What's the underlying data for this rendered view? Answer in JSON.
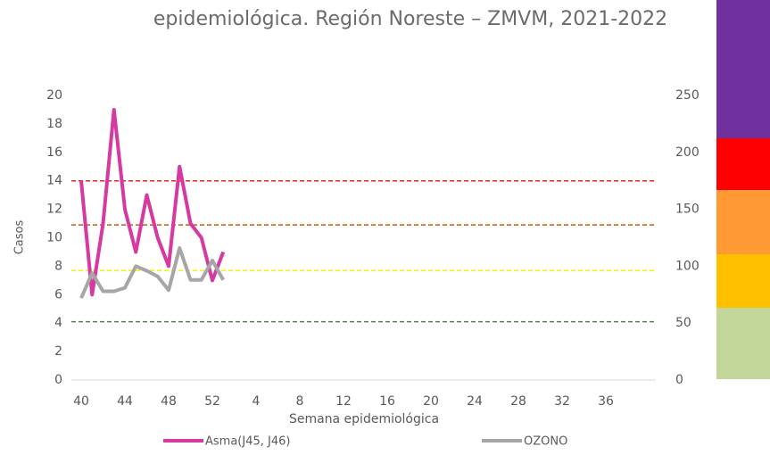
{
  "chart_data": {
    "type": "line",
    "title": "epidemiológica. Región Noreste – ZMVM, 2021-2022",
    "x_label": "Semana epidemiológica",
    "y_label": "Casos",
    "categories": [
      "40",
      null,
      null,
      null,
      "44",
      null,
      null,
      null,
      "48",
      null,
      null,
      null,
      "52",
      null,
      null,
      null,
      "4",
      null,
      null,
      null,
      "8",
      null,
      null,
      null,
      "12",
      null,
      null,
      null,
      "16",
      null,
      null,
      null,
      "20",
      null,
      null,
      null,
      "24",
      null,
      null,
      null,
      "28",
      null,
      null,
      null,
      "32",
      null,
      null,
      null,
      "36",
      null,
      null,
      null
    ],
    "series": [
      {
        "name": "Asma(J45, J46)",
        "color": "#d63aa0",
        "values": [
          14,
          6,
          11,
          19,
          12,
          9,
          13,
          10,
          8,
          15,
          11,
          10,
          7,
          9,
          null,
          null,
          null,
          null,
          null,
          null,
          null,
          null,
          null,
          null,
          null,
          null,
          null,
          null,
          null,
          null,
          null,
          null,
          null,
          null,
          null,
          null,
          null,
          null,
          null,
          null,
          null,
          null,
          null,
          null,
          null,
          null,
          null,
          null,
          null,
          null,
          null,
          null
        ]
      },
      {
        "name": "OZONO",
        "color": "#a6a6a6",
        "axis": "y2",
        "values": [
          72,
          94,
          78,
          78,
          81,
          100,
          96,
          91,
          79,
          116,
          88,
          88,
          105,
          88,
          null,
          null,
          null,
          null,
          null,
          null,
          null,
          null,
          null,
          null,
          null,
          null,
          null,
          null,
          null,
          null,
          null,
          null,
          null,
          null,
          null,
          null,
          null,
          null,
          null,
          null,
          null,
          null,
          null,
          null,
          null,
          null,
          null,
          null,
          null,
          null,
          null,
          null
        ]
      }
    ],
    "reference_lines": [
      {
        "value": 14,
        "color": "#e8211f"
      },
      {
        "value": 10.9,
        "color": "#c55a11"
      },
      {
        "value": 7.7,
        "color": "#f2f20a"
      },
      {
        "value": 4.1,
        "color": "#548235"
      }
    ],
    "ylim": [
      0,
      20
    ],
    "yticks": [
      0,
      2,
      4,
      6,
      8,
      10,
      12,
      14,
      16,
      18,
      20
    ],
    "y2lim": [
      0,
      250
    ],
    "y2ticks": [
      0,
      50,
      100,
      150,
      200,
      250
    ]
  }
}
